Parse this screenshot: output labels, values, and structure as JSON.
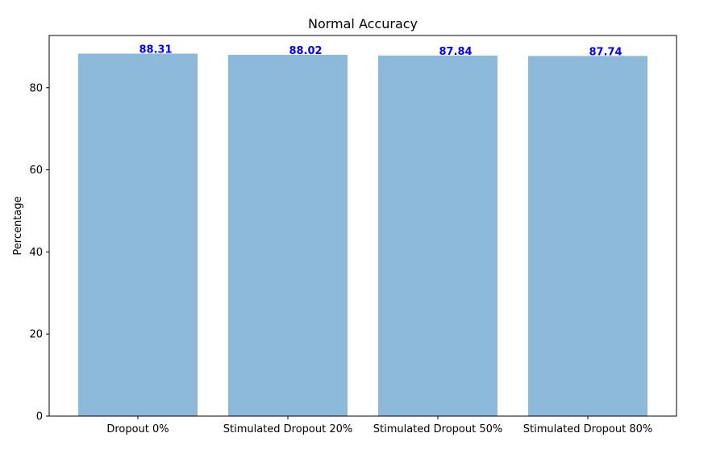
{
  "chart_data": {
    "type": "bar",
    "title": "Normal Accuracy",
    "xlabel": "",
    "ylabel": "Percentage",
    "categories": [
      "Dropout 0%",
      "Stimulated Dropout 20%",
      "Stimulated Dropout 50%",
      "Stimulated Dropout 80%"
    ],
    "values": [
      88.31,
      88.02,
      87.84,
      87.74
    ],
    "data_labels": [
      "88.31",
      "88.02",
      "87.84",
      "87.74"
    ],
    "ylim": [
      0,
      92.73
    ],
    "yticks": [
      0,
      20,
      40,
      60,
      80
    ],
    "ytick_labels": [
      "0",
      "20",
      "40",
      "60",
      "80"
    ],
    "grid": false,
    "legend": "none",
    "colors": {
      "bar": "#8db9da",
      "value_label": "#0000ff",
      "axis": "#000000"
    }
  }
}
